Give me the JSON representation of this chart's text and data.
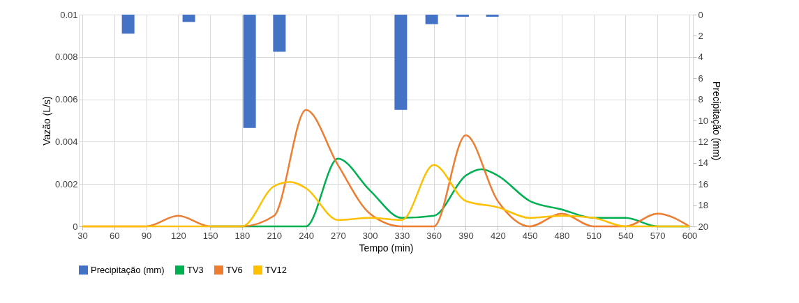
{
  "chart_data": {
    "type": "line",
    "xlabel": "Tempo (min)",
    "ylabel": "Vazão (L/s)",
    "y2label": "Precipitação (mm)",
    "xlim": [
      30,
      600
    ],
    "xticks": [
      30,
      60,
      90,
      120,
      150,
      180,
      210,
      240,
      270,
      300,
      330,
      360,
      390,
      420,
      450,
      480,
      510,
      540,
      570,
      600
    ],
    "ylim": [
      0,
      0.01
    ],
    "yticks": [
      0,
      0.002,
      0.004,
      0.006,
      0.008,
      0.01
    ],
    "y2lim": [
      20,
      0
    ],
    "y2ticks": [
      0,
      2,
      4,
      6,
      8,
      10,
      12,
      14,
      16,
      18,
      20
    ],
    "grid": true,
    "legend": "bottom",
    "series": [
      {
        "name": "Precipitação (mm)",
        "type": "bar",
        "axis": "y2",
        "color": "#4472c4",
        "x": [
          73,
          130,
          187,
          215,
          329,
          358,
          387,
          415
        ],
        "values": [
          1.8,
          0.7,
          10.7,
          3.5,
          9.0,
          0.9,
          0.2,
          0.2
        ]
      },
      {
        "name": "TV3",
        "color": "#00b050",
        "x": [
          150,
          180,
          210,
          240,
          270,
          300,
          330,
          360,
          390,
          405,
          420,
          450,
          480,
          510,
          540,
          570,
          600
        ],
        "values": [
          0,
          0,
          0,
          0,
          0.0032,
          0.0017,
          0.0004,
          0.0005,
          0.0024,
          0.0027,
          0.0024,
          0.0012,
          0.0008,
          0.0004,
          0.0004,
          0,
          0
        ]
      },
      {
        "name": "TV6",
        "color": "#ed7d31",
        "x": [
          30,
          60,
          90,
          120,
          150,
          180,
          210,
          240,
          270,
          300,
          330,
          360,
          390,
          420,
          450,
          480,
          510,
          540,
          570,
          600
        ],
        "values": [
          0,
          0,
          0,
          0.0005,
          0,
          0,
          0.0005,
          0.0055,
          0.0029,
          0.0006,
          0,
          0,
          0.0043,
          0.0012,
          0,
          0.0006,
          0,
          0,
          0.0006,
          0
        ]
      },
      {
        "name": "TV12",
        "color": "#ffc000",
        "x": [
          30,
          60,
          90,
          120,
          150,
          180,
          210,
          225,
          240,
          270,
          300,
          330,
          360,
          390,
          420,
          450,
          480,
          510,
          540,
          570,
          600
        ],
        "values": [
          0,
          0,
          0,
          0,
          0,
          0,
          0.0019,
          0.0021,
          0.0018,
          0.0003,
          0.0004,
          0.0003,
          0.0029,
          0.0012,
          0.0009,
          0.0004,
          0.0005,
          0.0004,
          0,
          0,
          0
        ]
      }
    ]
  }
}
